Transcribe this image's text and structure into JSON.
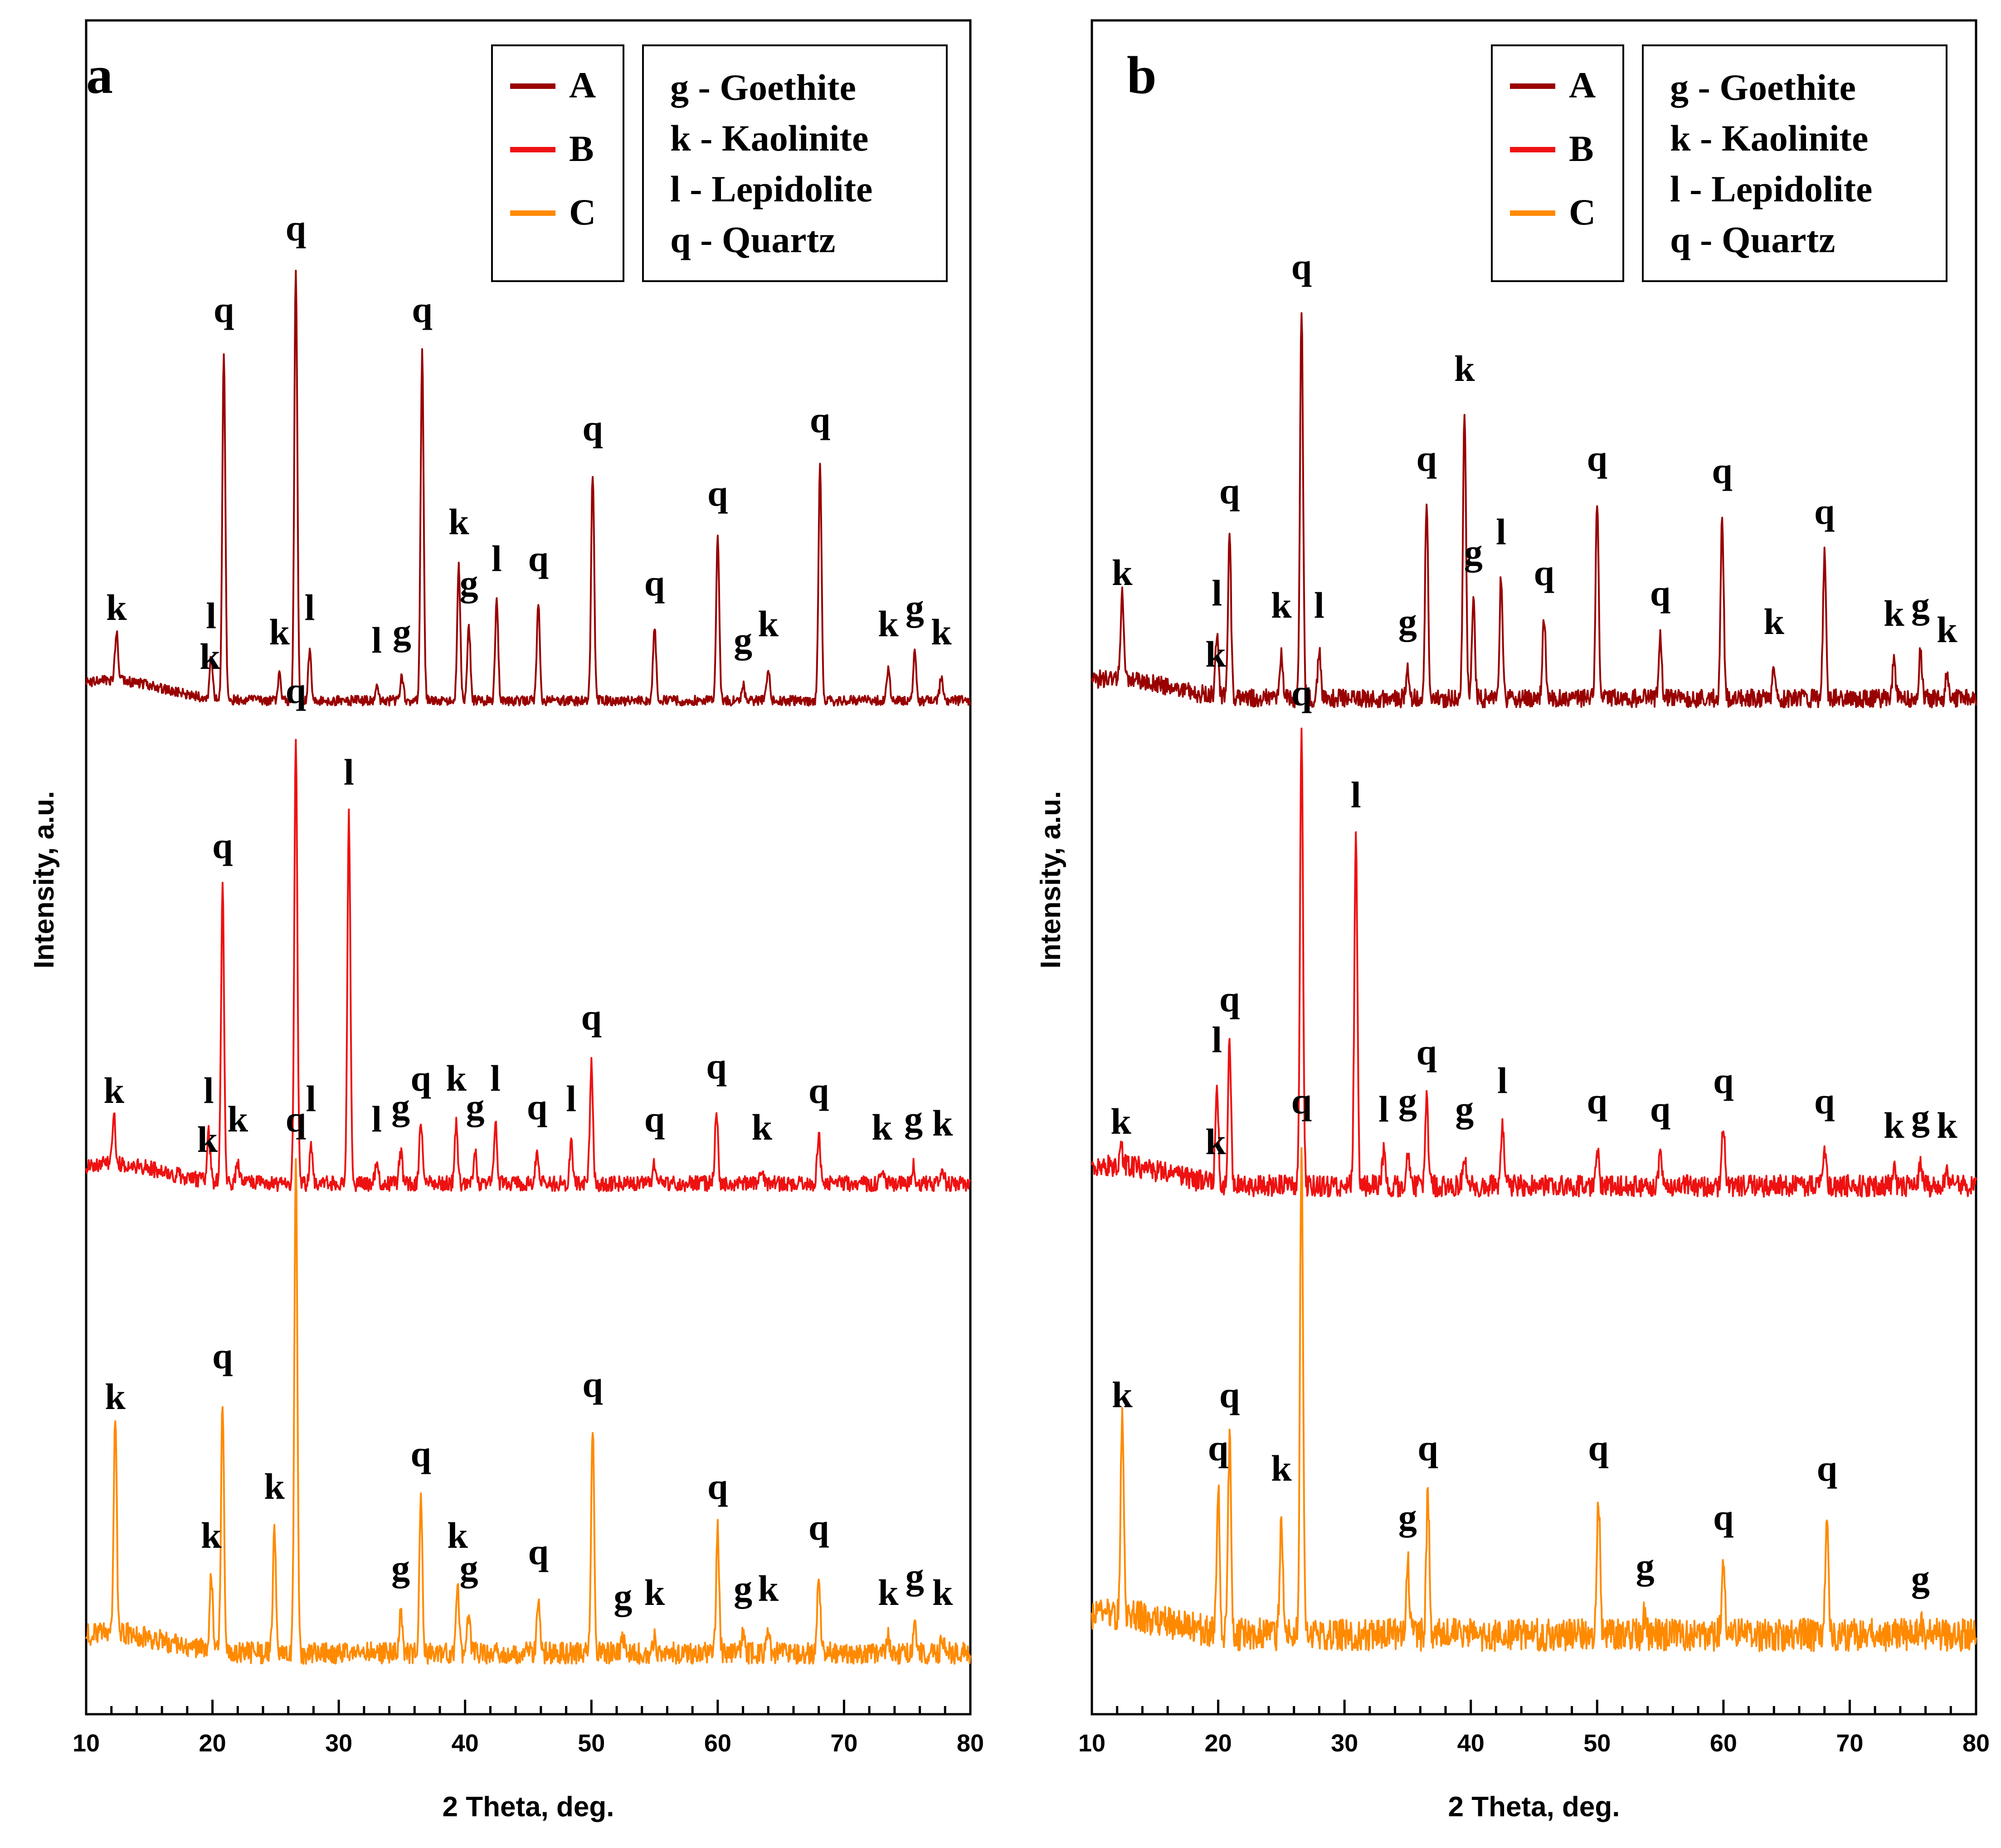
{
  "chart_data": [
    {
      "type": "line",
      "panel": "a",
      "xlabel": "2 Theta, deg.",
      "ylabel": "Intensity, a.u.",
      "xlim": [
        10,
        80
      ],
      "xticks": [
        10,
        20,
        30,
        40,
        50,
        60,
        70,
        80
      ],
      "series_legend": [
        {
          "name": "A",
          "color": "#990000"
        },
        {
          "name": "B",
          "color": "#ee1111"
        },
        {
          "name": "C",
          "color": "#ff8a00"
        }
      ],
      "phase_legend": [
        "g - Goethite",
        "k - Kaolinite",
        "l - Lepidolite",
        "q - Quartz"
      ],
      "series": [
        {
          "name": "A",
          "peaks": [
            {
              "x": 12.4,
              "h": 0.12,
              "label": "k"
            },
            {
              "x": 19.9,
              "h": 0.1,
              "label": "l"
            },
            {
              "x": 19.8,
              "h": 0.0,
              "label": "k"
            },
            {
              "x": 20.9,
              "h": 0.85,
              "label": "q"
            },
            {
              "x": 25.3,
              "h": 0.06,
              "label": "k"
            },
            {
              "x": 26.6,
              "h": 1.05,
              "label": "q"
            },
            {
              "x": 27.7,
              "h": 0.12,
              "label": "l"
            },
            {
              "x": 33.0,
              "h": 0.04,
              "label": "l"
            },
            {
              "x": 35.0,
              "h": 0.06,
              "label": "g"
            },
            {
              "x": 36.6,
              "h": 0.85,
              "label": "q"
            },
            {
              "x": 39.5,
              "h": 0.33,
              "label": "k"
            },
            {
              "x": 40.3,
              "h": 0.18,
              "label": "g"
            },
            {
              "x": 42.5,
              "h": 0.24,
              "label": "l"
            },
            {
              "x": 45.8,
              "h": 0.24,
              "label": "q"
            },
            {
              "x": 50.1,
              "h": 0.56,
              "label": "q"
            },
            {
              "x": 55.0,
              "h": 0.18,
              "label": "q"
            },
            {
              "x": 60.0,
              "h": 0.4,
              "label": "q"
            },
            {
              "x": 62.0,
              "h": 0.04,
              "label": "g"
            },
            {
              "x": 64.0,
              "h": 0.08,
              "label": "k"
            },
            {
              "x": 68.1,
              "h": 0.58,
              "label": "q"
            },
            {
              "x": 73.5,
              "h": 0.08,
              "label": "k"
            },
            {
              "x": 75.6,
              "h": 0.12,
              "label": "g"
            },
            {
              "x": 77.7,
              "h": 0.06,
              "label": "k"
            }
          ]
        },
        {
          "name": "B",
          "peaks": [
            {
              "x": 12.2,
              "h": 0.12,
              "label": "k"
            },
            {
              "x": 19.7,
              "h": 0.12,
              "label": "l"
            },
            {
              "x": 19.6,
              "h": 0.0,
              "label": "k"
            },
            {
              "x": 20.8,
              "h": 0.72,
              "label": "q"
            },
            {
              "x": 22.0,
              "h": 0.05,
              "label": "k"
            },
            {
              "x": 26.6,
              "h": 1.1,
              "label": "q"
            },
            {
              "x": 27.8,
              "h": 0.1,
              "label": "l"
            },
            {
              "x": 30.8,
              "h": 0.9,
              "label": "l"
            },
            {
              "x": 33.0,
              "h": 0.05,
              "label": "l"
            },
            {
              "x": 34.9,
              "h": 0.08,
              "label": "g"
            },
            {
              "x": 36.5,
              "h": 0.15,
              "label": "q"
            },
            {
              "x": 39.3,
              "h": 0.15,
              "label": "k"
            },
            {
              "x": 40.8,
              "h": 0.08,
              "label": "g"
            },
            {
              "x": 42.4,
              "h": 0.15,
              "label": "l"
            },
            {
              "x": 45.7,
              "h": 0.08,
              "label": "q"
            },
            {
              "x": 48.4,
              "h": 0.1,
              "label": "l"
            },
            {
              "x": 50.0,
              "h": 0.3,
              "label": "q"
            },
            {
              "x": 55.0,
              "h": 0.05,
              "label": "q"
            },
            {
              "x": 59.9,
              "h": 0.18,
              "label": "q"
            },
            {
              "x": 63.5,
              "h": 0.03,
              "label": "k"
            },
            {
              "x": 68.0,
              "h": 0.12,
              "label": "q"
            },
            {
              "x": 73.0,
              "h": 0.03,
              "label": "k"
            },
            {
              "x": 75.5,
              "h": 0.05,
              "label": "g"
            },
            {
              "x": 77.8,
              "h": 0.04,
              "label": "k"
            }
          ]
        },
        {
          "name": "C",
          "peaks": [
            {
              "x": 12.3,
              "h": 0.52,
              "label": "k"
            },
            {
              "x": 19.9,
              "h": 0.18,
              "label": "k"
            },
            {
              "x": 20.8,
              "h": 0.62,
              "label": "q"
            },
            {
              "x": 24.9,
              "h": 0.3,
              "label": "k"
            },
            {
              "x": 26.6,
              "h": 1.2,
              "label": "q"
            },
            {
              "x": 34.9,
              "h": 0.1,
              "label": "g"
            },
            {
              "x": 36.5,
              "h": 0.38,
              "label": "q"
            },
            {
              "x": 39.4,
              "h": 0.18,
              "label": "k"
            },
            {
              "x": 40.3,
              "h": 0.1,
              "label": "g"
            },
            {
              "x": 45.8,
              "h": 0.14,
              "label": "q"
            },
            {
              "x": 50.1,
              "h": 0.55,
              "label": "q"
            },
            {
              "x": 52.5,
              "h": 0.03,
              "label": "g"
            },
            {
              "x": 55.0,
              "h": 0.04,
              "label": "k"
            },
            {
              "x": 60.0,
              "h": 0.3,
              "label": "q"
            },
            {
              "x": 62.0,
              "h": 0.05,
              "label": "g"
            },
            {
              "x": 64.0,
              "h": 0.05,
              "label": "k"
            },
            {
              "x": 68.0,
              "h": 0.2,
              "label": "q"
            },
            {
              "x": 73.5,
              "h": 0.04,
              "label": "k"
            },
            {
              "x": 75.6,
              "h": 0.08,
              "label": "g"
            },
            {
              "x": 77.8,
              "h": 0.04,
              "label": "k"
            }
          ]
        }
      ]
    },
    {
      "type": "line",
      "panel": "b",
      "xlabel": "2 Theta, deg.",
      "ylabel": "Intensity, a.u.",
      "xlim": [
        10,
        80
      ],
      "xticks": [
        10,
        20,
        30,
        40,
        50,
        60,
        70,
        80
      ],
      "series_legend": [
        {
          "name": "A",
          "color": "#990000"
        },
        {
          "name": "B",
          "color": "#ee1111"
        },
        {
          "name": "C",
          "color": "#ff8a00"
        }
      ],
      "phase_legend": [
        "g - Goethite",
        "k - Kaolinite",
        "l - Lepidolite",
        "q - Quartz"
      ],
      "series": [
        {
          "name": "A",
          "peaks": [
            {
              "x": 12.4,
              "h": 0.2,
              "label": "k"
            },
            {
              "x": 19.9,
              "h": 0.15,
              "label": "l"
            },
            {
              "x": 19.8,
              "h": 0.0,
              "label": "k"
            },
            {
              "x": 20.9,
              "h": 0.4,
              "label": "q"
            },
            {
              "x": 25.0,
              "h": 0.12,
              "label": "k"
            },
            {
              "x": 26.6,
              "h": 0.95,
              "label": "q"
            },
            {
              "x": 28.0,
              "h": 0.12,
              "label": "l"
            },
            {
              "x": 35.0,
              "h": 0.08,
              "label": "g"
            },
            {
              "x": 36.5,
              "h": 0.48,
              "label": "q"
            },
            {
              "x": 39.5,
              "h": 0.7,
              "label": "k"
            },
            {
              "x": 40.2,
              "h": 0.25,
              "label": "g"
            },
            {
              "x": 42.4,
              "h": 0.3,
              "label": "l"
            },
            {
              "x": 45.8,
              "h": 0.2,
              "label": "q"
            },
            {
              "x": 50.0,
              "h": 0.48,
              "label": "q"
            },
            {
              "x": 55.0,
              "h": 0.15,
              "label": "q"
            },
            {
              "x": 59.9,
              "h": 0.45,
              "label": "q"
            },
            {
              "x": 64.0,
              "h": 0.08,
              "label": "k"
            },
            {
              "x": 68.0,
              "h": 0.35,
              "label": "q"
            },
            {
              "x": 73.5,
              "h": 0.1,
              "label": "k"
            },
            {
              "x": 75.6,
              "h": 0.12,
              "label": "g"
            },
            {
              "x": 77.7,
              "h": 0.06,
              "label": "k"
            }
          ]
        },
        {
          "name": "B",
          "peaks": [
            {
              "x": 12.3,
              "h": 0.05,
              "label": "k"
            },
            {
              "x": 19.9,
              "h": 0.25,
              "label": "l"
            },
            {
              "x": 19.8,
              "h": 0.0,
              "label": "k"
            },
            {
              "x": 20.9,
              "h": 0.35,
              "label": "q"
            },
            {
              "x": 26.6,
              "h": 1.1,
              "label": "q"
            },
            {
              "x": 30.9,
              "h": 0.85,
              "label": "l"
            },
            {
              "x": 33.1,
              "h": 0.08,
              "label": "l"
            },
            {
              "x": 35.0,
              "h": 0.1,
              "label": "g"
            },
            {
              "x": 36.5,
              "h": 0.22,
              "label": "q"
            },
            {
              "x": 39.5,
              "h": 0.08,
              "label": "g"
            },
            {
              "x": 42.5,
              "h": 0.15,
              "label": "l"
            },
            {
              "x": 50.0,
              "h": 0.1,
              "label": "q"
            },
            {
              "x": 55.0,
              "h": 0.08,
              "label": "q"
            },
            {
              "x": 60.0,
              "h": 0.15,
              "label": "q"
            },
            {
              "x": 68.0,
              "h": 0.1,
              "label": "q"
            },
            {
              "x": 73.5,
              "h": 0.04,
              "label": "k"
            },
            {
              "x": 75.6,
              "h": 0.06,
              "label": "g"
            },
            {
              "x": 77.7,
              "h": 0.04,
              "label": "k"
            }
          ]
        },
        {
          "name": "C",
          "peaks": [
            {
              "x": 12.4,
              "h": 0.48,
              "label": "k"
            },
            {
              "x": 20.0,
              "h": 0.35,
              "label": "q"
            },
            {
              "x": 20.9,
              "h": 0.48,
              "label": "q"
            },
            {
              "x": 25.0,
              "h": 0.3,
              "label": "k"
            },
            {
              "x": 26.6,
              "h": 1.2,
              "label": "q"
            },
            {
              "x": 35.0,
              "h": 0.18,
              "label": "g"
            },
            {
              "x": 36.6,
              "h": 0.35,
              "label": "q"
            },
            {
              "x": 50.1,
              "h": 0.35,
              "label": "q"
            },
            {
              "x": 53.8,
              "h": 0.06,
              "label": "g"
            },
            {
              "x": 60.0,
              "h": 0.18,
              "label": "q"
            },
            {
              "x": 68.2,
              "h": 0.3,
              "label": "q"
            },
            {
              "x": 75.6,
              "h": 0.03,
              "label": "g"
            }
          ]
        }
      ]
    }
  ]
}
